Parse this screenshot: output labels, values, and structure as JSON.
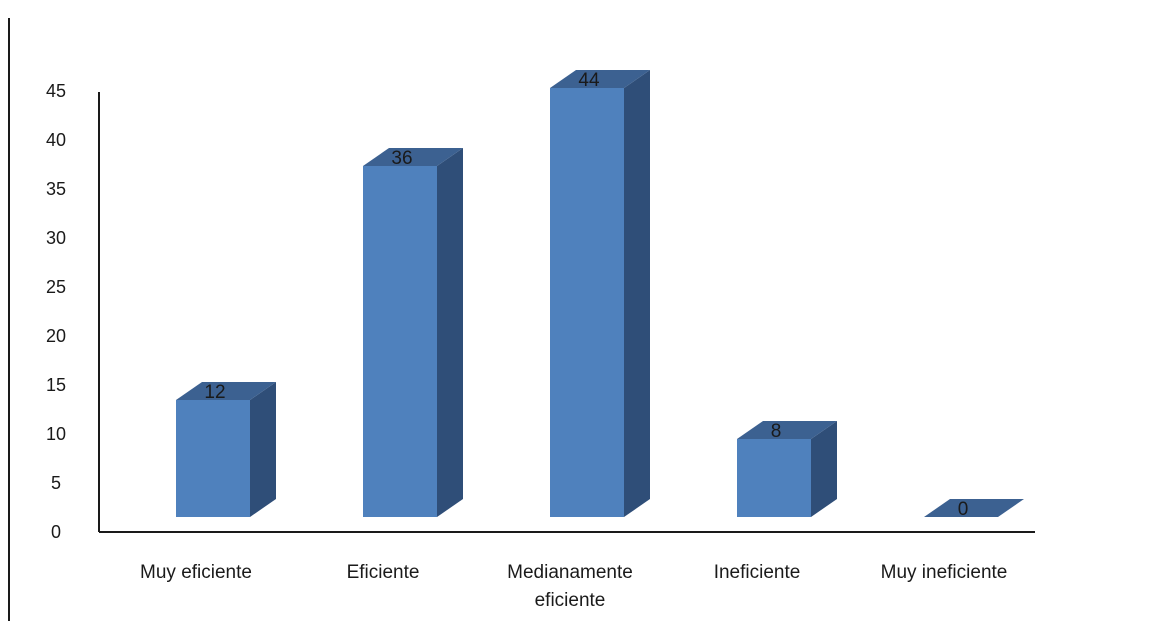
{
  "chart_data": {
    "type": "bar",
    "style": "3d-column",
    "categories": [
      "Muy eficiente",
      "Eficiente",
      "Medianamente eficiente",
      "Ineficiente",
      "Muy ineficiente"
    ],
    "category_label_lines": [
      [
        "Muy eficiente"
      ],
      [
        "Eficiente"
      ],
      [
        "Medianamente",
        "eficiente"
      ],
      [
        "Ineficiente"
      ],
      [
        "Muy ineficiente"
      ]
    ],
    "values": [
      12,
      36,
      44,
      8,
      0
    ],
    "data_labels": [
      "12",
      "36",
      "44",
      "8",
      "0"
    ],
    "yticks": [
      0,
      5,
      10,
      15,
      20,
      25,
      30,
      35,
      40,
      45
    ],
    "ylim": [
      0,
      45
    ],
    "title": "",
    "xlabel": "",
    "ylabel": "",
    "grid": false,
    "legend": "none",
    "colors": {
      "bar_front": "#4f81bd",
      "bar_side": "#2f4e78",
      "bar_top": "#3c6191",
      "axis": "#1a1a1a"
    }
  }
}
